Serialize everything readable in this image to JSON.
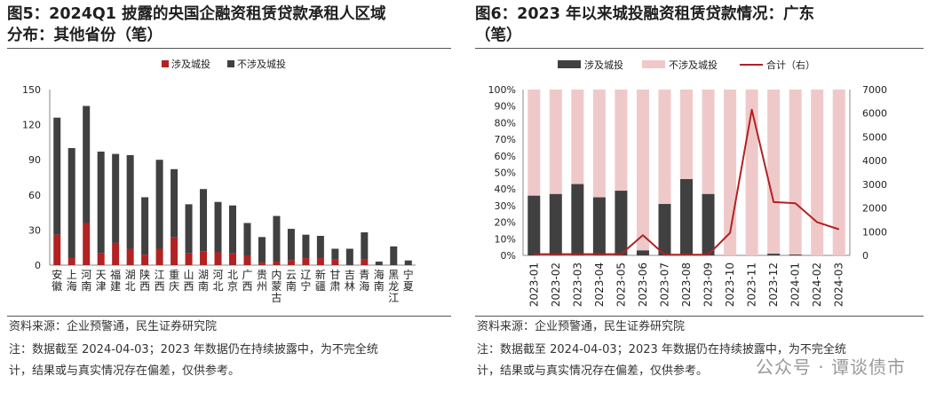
{
  "left": {
    "title_line1": "图5：2024Q1 披露的央国企融资租赁贷款承租人区域",
    "title_line2": "分布：其他省份（笔）",
    "source": "资料来源：企业预警通，民生证券研究院",
    "note_line1": "注：数据截至 2024-04-03；2023 年数据仍在持续披露中，为不完全统",
    "note_line2": "计，结果或与真实情况存在偏差，仅供参考。"
  },
  "right": {
    "title_line1": "图6：2023 年以来城投融资租赁贷款情况：广东",
    "title_line2": "（笔）",
    "source": "资料来源：企业预警通，民生证券研究院",
    "note_line1": "注：数据截至 2024-04-03；2023 年数据仍在持续披露中，为不完全统",
    "note_line2": "计，结果或与真实情况存在偏差，仅供参考。"
  },
  "watermark": "公众号 · 谭谈债市",
  "colors": {
    "red": "#b22222",
    "dark": "#404040",
    "pink": "#efc9c9",
    "line": "#b22222"
  },
  "chart_data": [
    {
      "type": "bar",
      "stacked": true,
      "legend_position": "top-left",
      "categories": [
        "安徽",
        "上海",
        "河南",
        "天津",
        "福建",
        "湖北",
        "陕西",
        "江西",
        "重庆",
        "山西",
        "湖南",
        "河北",
        "北京",
        "广西",
        "贵州",
        "内蒙古",
        "云南",
        "辽宁",
        "新疆",
        "甘肃",
        "吉林",
        "青海",
        "海南",
        "黑龙江",
        "宁夏"
      ],
      "series": [
        {
          "name": "涉及城投",
          "values": [
            26,
            6,
            36,
            10,
            19,
            14,
            9,
            14,
            24,
            10,
            12,
            11,
            10,
            8,
            2,
            3,
            4,
            6,
            6,
            5,
            0,
            5,
            0,
            0,
            0
          ]
        },
        {
          "name": "不涉及城投",
          "values": [
            100,
            94,
            100,
            87,
            76,
            80,
            49,
            76,
            58,
            42,
            53,
            43,
            41,
            28,
            22,
            39,
            27,
            20,
            19,
            9,
            14,
            23,
            3,
            16,
            4
          ]
        }
      ],
      "yticks": [
        0,
        30,
        60,
        90,
        120,
        150
      ],
      "ylim": [
        0,
        150
      ],
      "xlabel": "",
      "ylabel": ""
    },
    {
      "type": "bar+line",
      "stacked_percent": true,
      "legend_position": "top",
      "categories": [
        "2023-01",
        "2023-02",
        "2023-03",
        "2023-04",
        "2023-05",
        "2023-06",
        "2023-07",
        "2023-08",
        "2023-09",
        "2023-10",
        "2023-11",
        "2023-12",
        "2024-01",
        "2024-02",
        "2024-03"
      ],
      "series": [
        {
          "name": "涉及城投",
          "axis": "left",
          "values": [
            36,
            37,
            43,
            35,
            39,
            3,
            31,
            46,
            37,
            0,
            0,
            1,
            0.5,
            0,
            0
          ]
        },
        {
          "name": "不涉及城投",
          "axis": "left",
          "values": [
            64,
            63,
            57,
            65,
            61,
            97,
            69,
            54,
            63,
            100,
            100,
            99,
            99.5,
            100,
            100
          ]
        },
        {
          "name": "合计（右）",
          "axis": "right",
          "type": "line",
          "values": [
            50,
            50,
            50,
            50,
            50,
            850,
            30,
            30,
            30,
            950,
            6150,
            2250,
            2200,
            1400,
            1100
          ]
        }
      ],
      "yticks_left": [
        "0%",
        "10%",
        "20%",
        "30%",
        "40%",
        "50%",
        "60%",
        "70%",
        "80%",
        "90%",
        "100%"
      ],
      "yticks_right": [
        0,
        1000,
        2000,
        3000,
        4000,
        5000,
        6000,
        7000
      ],
      "ylim_left": [
        0,
        100
      ],
      "ylim_right": [
        0,
        7000
      ],
      "xlabel": "",
      "ylabel": ""
    }
  ]
}
